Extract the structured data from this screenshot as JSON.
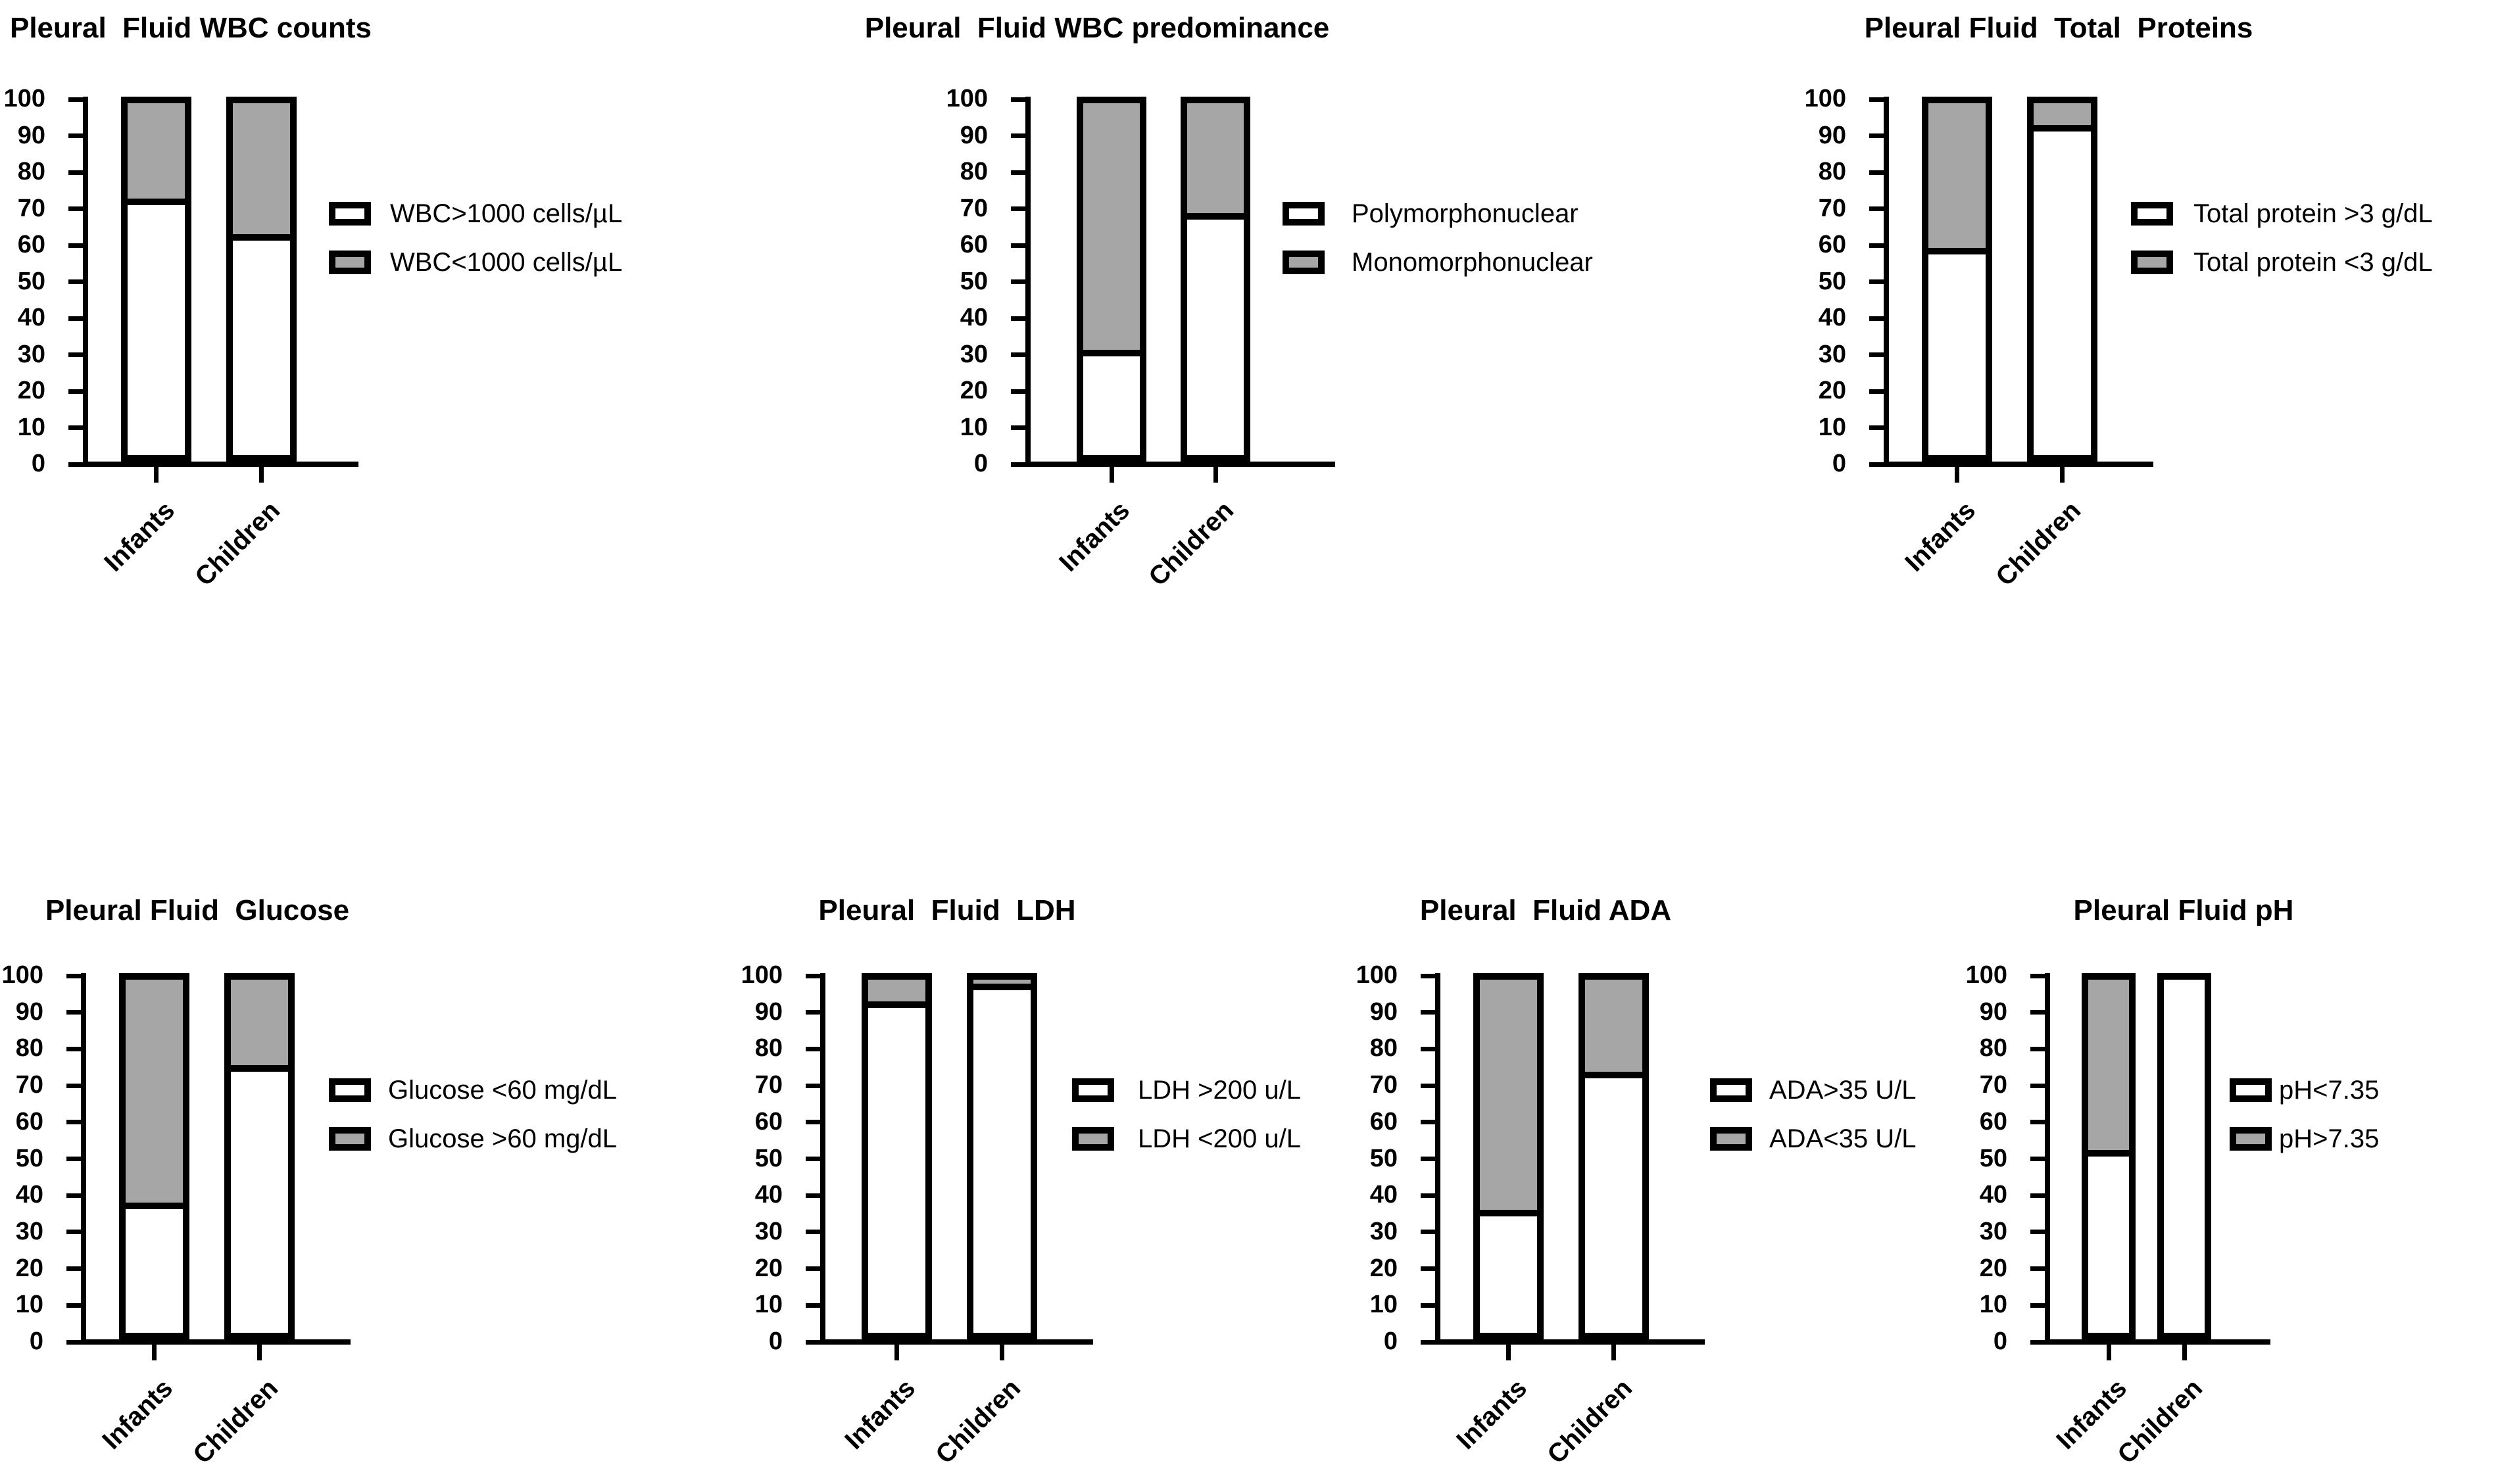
{
  "figure": {
    "description": "Seven stacked percentage bar charts comparing pleural fluid characteristics between Infants and Children",
    "y_axis_unit": "%"
  },
  "colors": {
    "segment_white": "#ffffff",
    "segment_gray": "#a6a6a6",
    "line_black": "#000000",
    "background": "#ffffff"
  },
  "chart_data": [
    {
      "id": "wbc-counts",
      "type": "bar",
      "stacked": true,
      "title": "Pleural  Fluid WBC counts",
      "categories": [
        "Infants",
        "Children"
      ],
      "series": [
        {
          "name": "WBC>1000 cells/µL",
          "fill": "white",
          "values": [
            71,
            61
          ]
        },
        {
          "name": "WBC<1000 cells/µL",
          "fill": "gray",
          "values": [
            29,
            39
          ]
        }
      ],
      "legend": [
        {
          "label": "WBC>1000 cells/µL",
          "fill": "white"
        },
        {
          "label": "WBC<1000 cells/µL",
          "fill": "gray"
        }
      ],
      "ylim": [
        0,
        100
      ],
      "yticks": [
        0,
        10,
        20,
        30,
        40,
        50,
        60,
        70,
        80,
        90,
        100
      ],
      "grid": false,
      "legend_position": "right"
    },
    {
      "id": "wbc-predominance",
      "type": "bar",
      "stacked": true,
      "title": "Pleural  Fluid WBC predominance",
      "categories": [
        "Infants",
        "Children"
      ],
      "series": [
        {
          "name": "Polymorphonuclear",
          "fill": "white",
          "values": [
            28,
            67
          ]
        },
        {
          "name": "Monomorphonuclear",
          "fill": "gray",
          "values": [
            72,
            33
          ]
        }
      ],
      "legend": [
        {
          "label": "Polymorphonuclear",
          "fill": "white"
        },
        {
          "label": "Monomorphonuclear",
          "fill": "gray"
        }
      ],
      "ylim": [
        0,
        100
      ],
      "yticks": [
        0,
        10,
        20,
        30,
        40,
        50,
        60,
        70,
        80,
        90,
        100
      ],
      "grid": false,
      "legend_position": "right"
    },
    {
      "id": "total-proteins",
      "type": "bar",
      "stacked": true,
      "title": "Pleural Fluid  Total  Proteins",
      "categories": [
        "Infants",
        "Children"
      ],
      "series": [
        {
          "name": "Total protein >3 g/dL",
          "fill": "white",
          "values": [
            57,
            92
          ]
        },
        {
          "name": "Total protein <3 g/dL",
          "fill": "gray",
          "values": [
            43,
            8
          ]
        }
      ],
      "legend": [
        {
          "label": "Total protein >3 g/dL",
          "fill": "white"
        },
        {
          "label": "Total protein <3 g/dL",
          "fill": "gray"
        }
      ],
      "ylim": [
        0,
        100
      ],
      "yticks": [
        0,
        10,
        20,
        30,
        40,
        50,
        60,
        70,
        80,
        90,
        100
      ],
      "grid": false,
      "legend_position": "right"
    },
    {
      "id": "glucose",
      "type": "bar",
      "stacked": true,
      "title": "Pleural Fluid  Glucose",
      "categories": [
        "Infants",
        "Children"
      ],
      "series": [
        {
          "name": "Glucose <60 mg/dL",
          "fill": "white",
          "values": [
            35,
            74
          ]
        },
        {
          "name": "Glucose >60 mg/dL",
          "fill": "gray",
          "values": [
            65,
            26
          ]
        }
      ],
      "legend": [
        {
          "label": "Glucose <60 mg/dL",
          "fill": "white"
        },
        {
          "label": "Glucose >60 mg/dL",
          "fill": "gray"
        }
      ],
      "ylim": [
        0,
        100
      ],
      "yticks": [
        0,
        10,
        20,
        30,
        40,
        50,
        60,
        70,
        80,
        90,
        100
      ],
      "grid": false,
      "legend_position": "right"
    },
    {
      "id": "ldh",
      "type": "bar",
      "stacked": true,
      "title": "Pleural  Fluid  LDH",
      "categories": [
        "Infants",
        "Children"
      ],
      "series": [
        {
          "name": "LDH >200 u/L",
          "fill": "white",
          "values": [
            92,
            97
          ]
        },
        {
          "name": "LDH <200 u/L",
          "fill": "gray",
          "values": [
            8,
            3
          ]
        }
      ],
      "legend": [
        {
          "label": "LDH >200 u/L",
          "fill": "white"
        },
        {
          "label": "LDH <200 u/L",
          "fill": "gray"
        }
      ],
      "ylim": [
        0,
        100
      ],
      "yticks": [
        0,
        10,
        20,
        30,
        40,
        50,
        60,
        70,
        80,
        90,
        100
      ],
      "grid": false,
      "legend_position": "right"
    },
    {
      "id": "ada",
      "type": "bar",
      "stacked": true,
      "title": "Pleural  Fluid ADA",
      "categories": [
        "Infants",
        "Children"
      ],
      "series": [
        {
          "name": "ADA>35 U/L",
          "fill": "white",
          "values": [
            33,
            72
          ]
        },
        {
          "name": "ADA<35 U/L",
          "fill": "gray",
          "values": [
            67,
            28
          ]
        }
      ],
      "legend": [
        {
          "label": "ADA>35 U/L",
          "fill": "white"
        },
        {
          "label": "ADA<35 U/L",
          "fill": "gray"
        }
      ],
      "ylim": [
        0,
        100
      ],
      "yticks": [
        0,
        10,
        20,
        30,
        40,
        50,
        60,
        70,
        80,
        90,
        100
      ],
      "grid": false,
      "legend_position": "right"
    },
    {
      "id": "ph",
      "type": "bar",
      "stacked": true,
      "title": "Pleural Fluid pH",
      "categories": [
        "Infants",
        "Children"
      ],
      "series": [
        {
          "name": "pH<7.35",
          "fill": "white",
          "values": [
            50,
            100
          ]
        },
        {
          "name": "pH>7.35",
          "fill": "gray",
          "values": [
            50,
            0
          ]
        }
      ],
      "legend": [
        {
          "label": "pH<7.35",
          "fill": "white"
        },
        {
          "label": "pH>7.35",
          "fill": "gray"
        }
      ],
      "ylim": [
        0,
        100
      ],
      "yticks": [
        0,
        10,
        20,
        30,
        40,
        50,
        60,
        70,
        80,
        90,
        100
      ],
      "grid": false,
      "legend_position": "right"
    }
  ]
}
